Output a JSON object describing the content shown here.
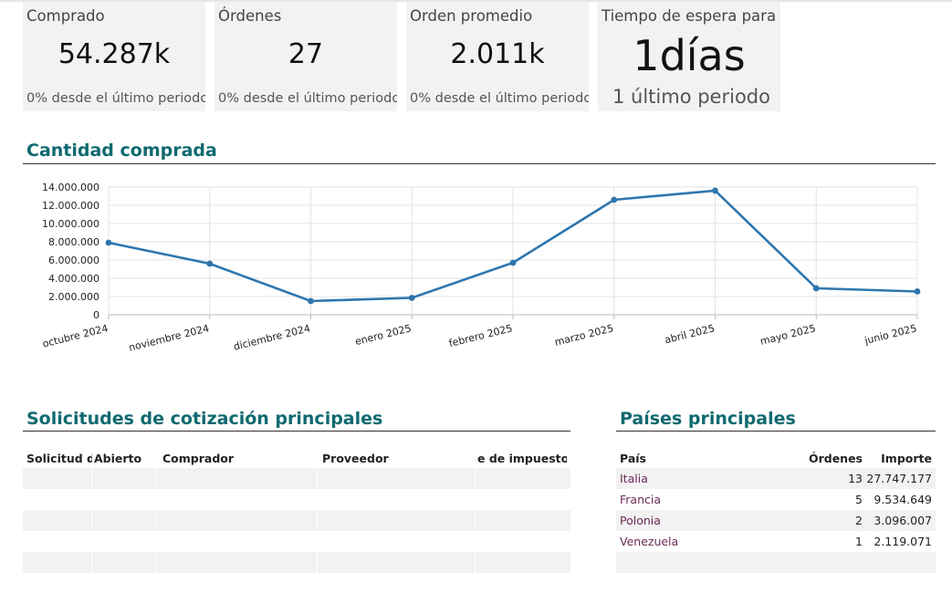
{
  "kpis": [
    {
      "label": "Comprado",
      "value": "54.287k",
      "sub": "0% desde el último periodo"
    },
    {
      "label": "Órdenes",
      "value": "27",
      "sub": "0% desde el último periodo"
    },
    {
      "label": "Orden promedio",
      "value": "2.011k",
      "sub": "0% desde el último periodo"
    },
    {
      "label": "Tiempo de espera para r",
      "value": "1días",
      "sub": "1 último periodo"
    }
  ],
  "chart_section": {
    "title": "Cantidad comprada"
  },
  "chart_data": {
    "type": "line",
    "categories": [
      "octubre 2024",
      "noviembre 2024",
      "diciembre 2024",
      "enero 2025",
      "febrero 2025",
      "marzo 2025",
      "abril 2025",
      "mayo 2025",
      "junio 2025"
    ],
    "series": [
      {
        "values": [
          7900000,
          5600000,
          1500000,
          1850000,
          5700000,
          12600000,
          13600000,
          2900000,
          2550000
        ]
      }
    ],
    "yticks": [
      "0",
      "2.000.000",
      "4.000.000",
      "6.000.000",
      "8.000.000",
      "10.000.000",
      "12.000.000",
      "14.000.000"
    ],
    "ylim": [
      0,
      14000000
    ],
    "grid": true,
    "color": "#2e76ae"
  },
  "rfq": {
    "title": "Solicitudes de cotización principales",
    "columns": [
      "Solicitud de",
      "Abierto",
      "Comprador",
      "Proveedor",
      "e de impuestos"
    ]
  },
  "countries": {
    "title": "Países principales",
    "columns": {
      "country": "País",
      "orders": "Órdenes",
      "amount": "Importe"
    },
    "rows": [
      {
        "country": "Italia",
        "orders": "13",
        "amount": "27.747.177"
      },
      {
        "country": "Francia",
        "orders": "5",
        "amount": "9.534.649"
      },
      {
        "country": "Polonia",
        "orders": "2",
        "amount": "3.096.007"
      },
      {
        "country": "Venezuela",
        "orders": "1",
        "amount": "2.119.071"
      }
    ]
  }
}
